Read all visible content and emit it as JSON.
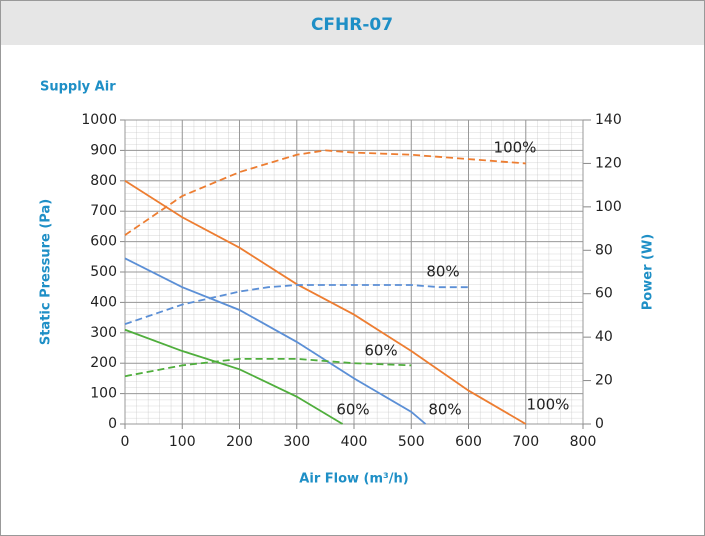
{
  "header": {
    "title": "CFHR-07"
  },
  "chart_data": {
    "type": "line",
    "title": "Supply Air",
    "x_label": "Air Flow (m³/h)",
    "y_label": "Static Pressure (Pa)",
    "y2_label": "Power (W)",
    "xlim": [
      0,
      800
    ],
    "xticks": [
      0,
      100,
      200,
      300,
      400,
      500,
      600,
      700,
      800
    ],
    "ylim": [
      0,
      1000
    ],
    "yticks": [
      0,
      100,
      200,
      300,
      400,
      500,
      600,
      700,
      800,
      900,
      1000
    ],
    "y2lim": [
      0,
      140
    ],
    "y2ticks": [
      0,
      20,
      40,
      60,
      80,
      100,
      120,
      140
    ],
    "grid": true,
    "series": [
      {
        "name": "100%",
        "color": "#ed7d31",
        "axis": "y",
        "x": [
          0,
          100,
          200,
          300,
          400,
          500,
          600,
          700
        ],
        "values": [
          800,
          680,
          580,
          460,
          360,
          240,
          110,
          0
        ]
      },
      {
        "name": "80%",
        "color": "#5b8fd6",
        "axis": "y",
        "x": [
          0,
          100,
          200,
          300,
          400,
          500,
          525
        ],
        "values": [
          545,
          450,
          375,
          270,
          150,
          40,
          0
        ]
      },
      {
        "name": "60%",
        "color": "#4fae3c",
        "axis": "y",
        "x": [
          0,
          100,
          200,
          300,
          380
        ],
        "values": [
          310,
          240,
          180,
          90,
          0
        ]
      },
      {
        "name": "100%",
        "color": "#ed7d31",
        "axis": "y2",
        "dashed": true,
        "x": [
          0,
          100,
          200,
          300,
          350,
          400,
          500,
          600,
          700
        ],
        "values": [
          87,
          105,
          116,
          124,
          126,
          125,
          124,
          122,
          120
        ]
      },
      {
        "name": "80%",
        "color": "#5b8fd6",
        "axis": "y2",
        "dashed": true,
        "x": [
          0,
          100,
          200,
          250,
          300,
          400,
          500,
          550,
          600
        ],
        "values": [
          46,
          55,
          61,
          63,
          64,
          64,
          64,
          63,
          63
        ]
      },
      {
        "name": "60%",
        "color": "#4fae3c",
        "axis": "y2",
        "dashed": true,
        "x": [
          0,
          100,
          200,
          300,
          400,
          500
        ],
        "values": [
          22,
          27,
          30,
          30,
          28,
          27
        ]
      }
    ]
  }
}
